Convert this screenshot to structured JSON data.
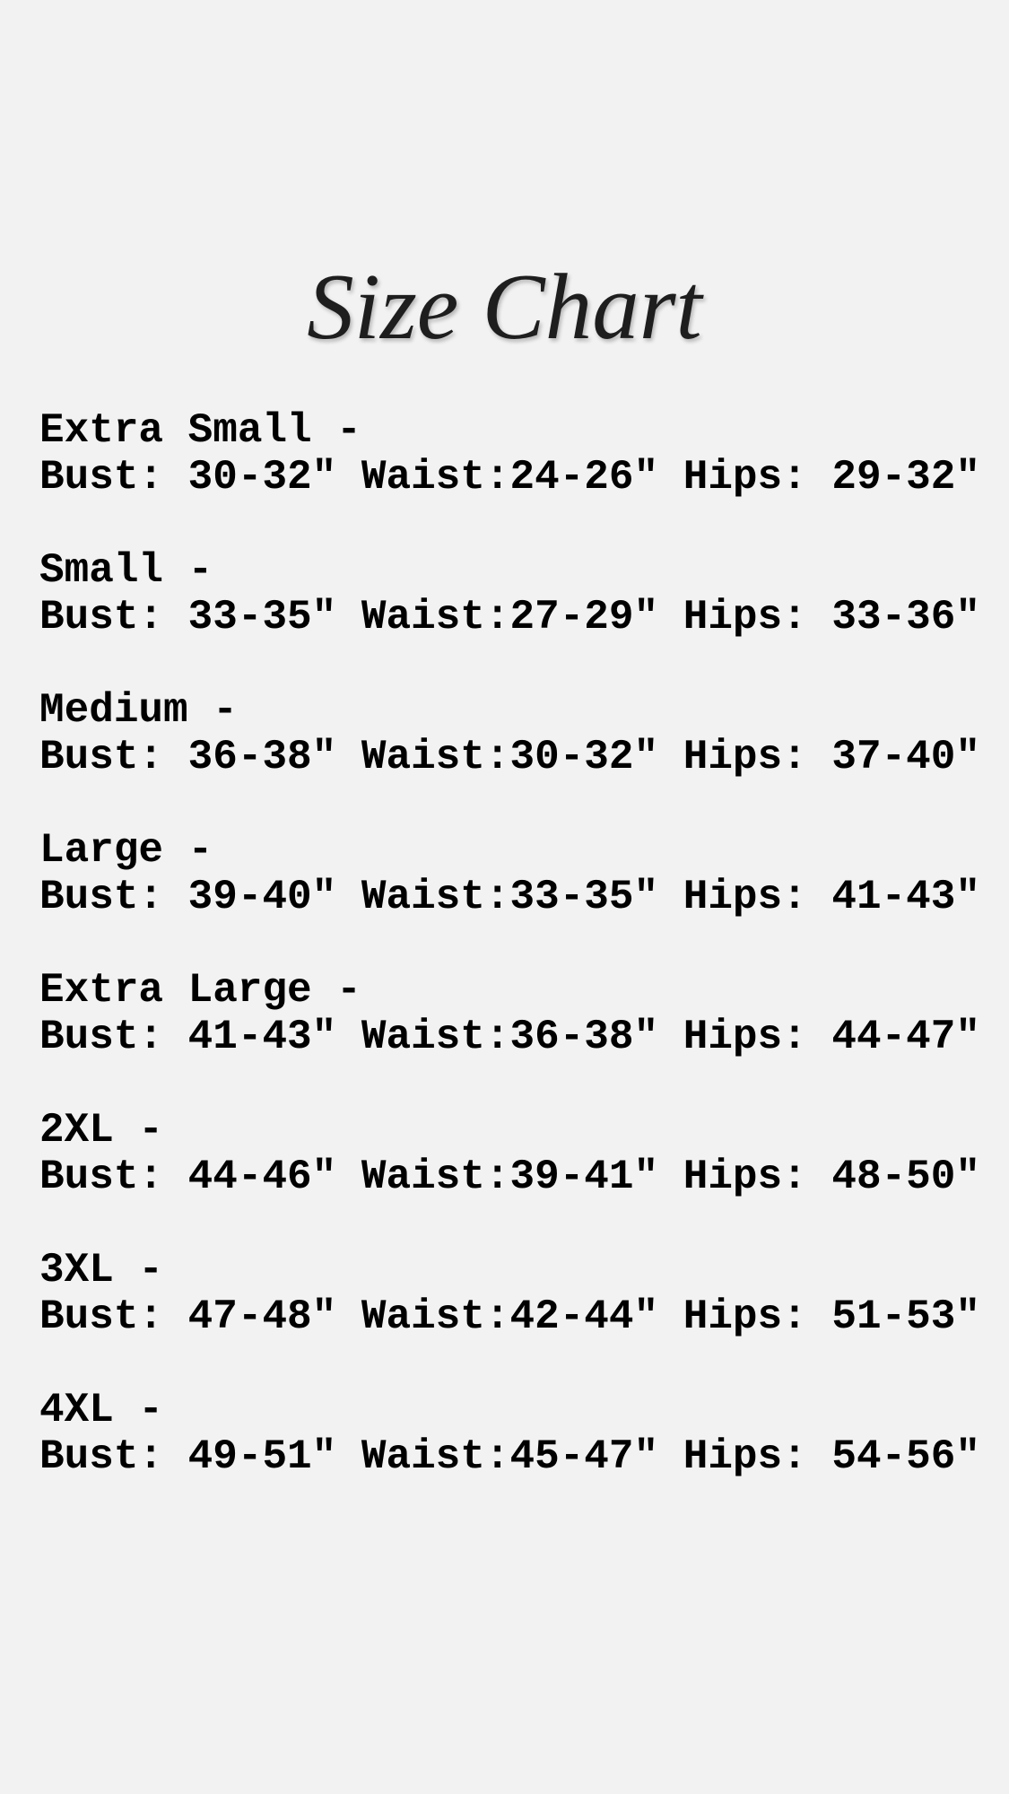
{
  "title": "Size Chart",
  "sizes": [
    {
      "label": "Extra Small -",
      "measurements": "Bust: 30-32″ Waist:24-26″ Hips: 29-32″"
    },
    {
      "label": "Small -",
      "measurements": "Bust: 33-35″ Waist:27-29″ Hips: 33-36″"
    },
    {
      "label": "Medium -",
      "measurements": "Bust: 36-38″ Waist:30-32″ Hips: 37-40″"
    },
    {
      "label": "Large -",
      "measurements": "Bust: 39-40″ Waist:33-35″ Hips: 41-43″"
    },
    {
      "label": "Extra Large -",
      "measurements": "Bust: 41-43″ Waist:36-38″ Hips: 44-47″"
    },
    {
      "label": "2XL -",
      "measurements": "Bust: 44-46″ Waist:39-41″ Hips: 48-50″"
    },
    {
      "label": "3XL -",
      "measurements": "Bust: 47-48″ Waist:42-44″ Hips: 51-53″"
    },
    {
      "label": "4XL -",
      "measurements": "Bust: 49-51″ Waist:45-47″ Hips: 54-56″"
    }
  ]
}
